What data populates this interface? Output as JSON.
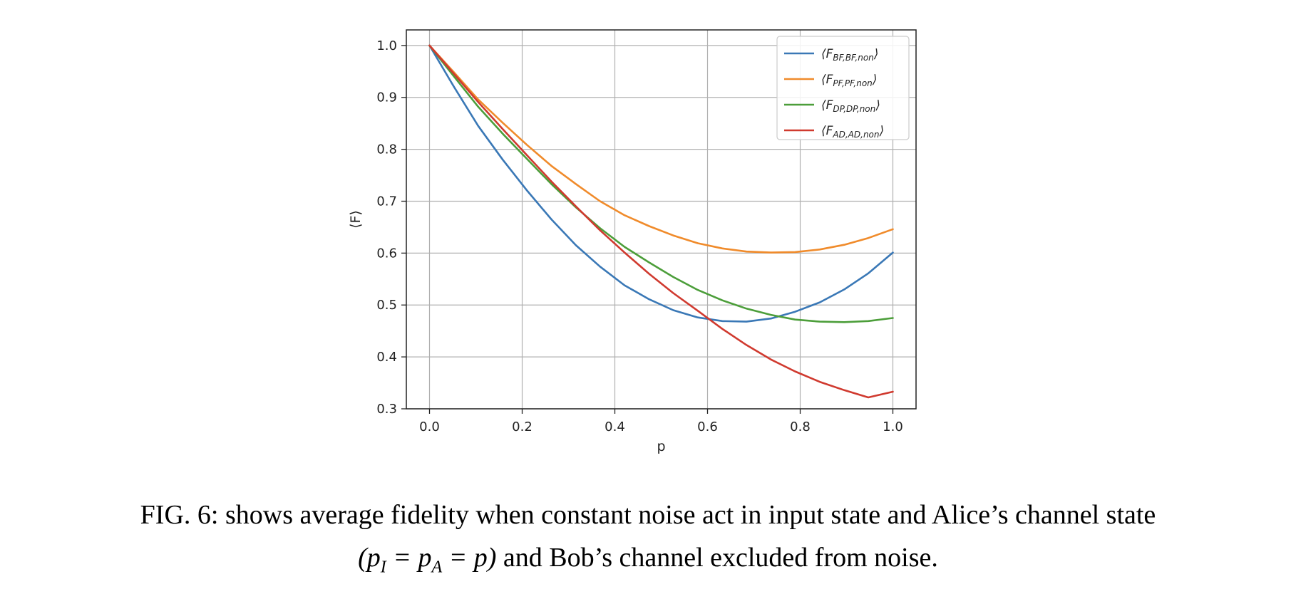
{
  "chart_data": {
    "type": "line",
    "xlabel": "p",
    "ylabel": "⟨F⟩",
    "xlim": [
      -0.05,
      1.05
    ],
    "ylim": [
      0.3,
      1.03
    ],
    "xticks": [
      "0.0",
      "0.2",
      "0.4",
      "0.6",
      "0.8",
      "1.0"
    ],
    "yticks": [
      "0.3",
      "0.4",
      "0.5",
      "0.6",
      "0.7",
      "0.8",
      "0.9",
      "1.0"
    ],
    "grid": true,
    "legend_position": "top-right",
    "x": [
      0.0,
      0.053,
      0.105,
      0.158,
      0.211,
      0.263,
      0.316,
      0.368,
      0.421,
      0.474,
      0.526,
      0.579,
      0.632,
      0.684,
      0.737,
      0.789,
      0.842,
      0.895,
      0.947,
      1.0
    ],
    "series": [
      {
        "name": "⟨F_{BF,BF,non}⟩",
        "label_main": "F",
        "label_sub": "BF,BF,non",
        "color": "#3a78b6",
        "values": [
          1.0,
          0.92,
          0.845,
          0.78,
          0.72,
          0.665,
          0.615,
          0.574,
          0.538,
          0.511,
          0.49,
          0.476,
          0.469,
          0.468,
          0.474,
          0.487,
          0.505,
          0.53,
          0.561,
          0.601
        ]
      },
      {
        "name": "⟨F_{PF,PF,non}⟩",
        "label_main": "F",
        "label_sub": "PF,PF,non",
        "color": "#f08b2b",
        "values": [
          1.0,
          0.948,
          0.896,
          0.851,
          0.808,
          0.768,
          0.733,
          0.7,
          0.673,
          0.652,
          0.634,
          0.619,
          0.609,
          0.603,
          0.601,
          0.602,
          0.607,
          0.616,
          0.629,
          0.646
        ]
      },
      {
        "name": "⟨F_{DP,DP,non}⟩",
        "label_main": "F",
        "label_sub": "DP,DP,non",
        "color": "#4c9e3a",
        "values": [
          1.0,
          0.94,
          0.882,
          0.83,
          0.781,
          0.733,
          0.688,
          0.648,
          0.612,
          0.582,
          0.554,
          0.529,
          0.509,
          0.493,
          0.481,
          0.472,
          0.468,
          0.467,
          0.469,
          0.475
        ]
      },
      {
        "name": "⟨F_{AD,AD,non}⟩",
        "label_main": "F",
        "label_sub": "AD,AD,non",
        "color": "#d03a2f",
        "values": [
          1.0,
          0.945,
          0.891,
          0.839,
          0.788,
          0.738,
          0.69,
          0.644,
          0.601,
          0.56,
          0.523,
          0.489,
          0.454,
          0.423,
          0.395,
          0.372,
          0.352,
          0.336,
          0.322,
          0.333
        ]
      }
    ]
  },
  "caption": {
    "prefix": "FIG. 6: shows average fidelity when constant noise act in input state and Alice’s channel state",
    "math": "(p_I = p_A = p)",
    "math_html_p": "p",
    "math_html_I": "I",
    "math_html_A": "A",
    "suffix": "and Bob’s channel excluded from noise."
  }
}
